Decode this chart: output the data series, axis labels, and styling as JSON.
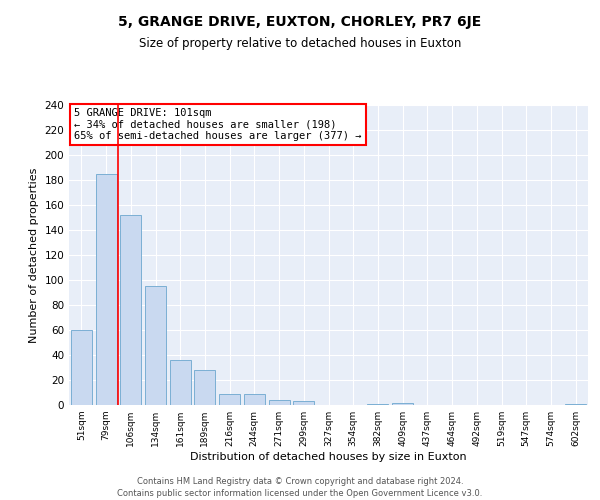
{
  "title": "5, GRANGE DRIVE, EUXTON, CHORLEY, PR7 6JE",
  "subtitle": "Size of property relative to detached houses in Euxton",
  "xlabel": "Distribution of detached houses by size in Euxton",
  "ylabel": "Number of detached properties",
  "bar_labels": [
    "51sqm",
    "79sqm",
    "106sqm",
    "134sqm",
    "161sqm",
    "189sqm",
    "216sqm",
    "244sqm",
    "271sqm",
    "299sqm",
    "327sqm",
    "354sqm",
    "382sqm",
    "409sqm",
    "437sqm",
    "464sqm",
    "492sqm",
    "519sqm",
    "547sqm",
    "574sqm",
    "602sqm"
  ],
  "bar_values": [
    60,
    185,
    152,
    95,
    36,
    28,
    9,
    9,
    4,
    3,
    0,
    0,
    1,
    2,
    0,
    0,
    0,
    0,
    0,
    0,
    1
  ],
  "bar_color": "#c9d9f0",
  "bar_edge_color": "#7bafd4",
  "ylim": [
    0,
    240
  ],
  "yticks": [
    0,
    20,
    40,
    60,
    80,
    100,
    120,
    140,
    160,
    180,
    200,
    220,
    240
  ],
  "annotation_title": "5 GRANGE DRIVE: 101sqm",
  "annotation_line1": "← 34% of detached houses are smaller (198)",
  "annotation_line2": "65% of semi-detached houses are larger (377) →",
  "footer1": "Contains HM Land Registry data © Crown copyright and database right 2024.",
  "footer2": "Contains public sector information licensed under the Open Government Licence v3.0.",
  "plot_bg_color": "#e8eef8"
}
